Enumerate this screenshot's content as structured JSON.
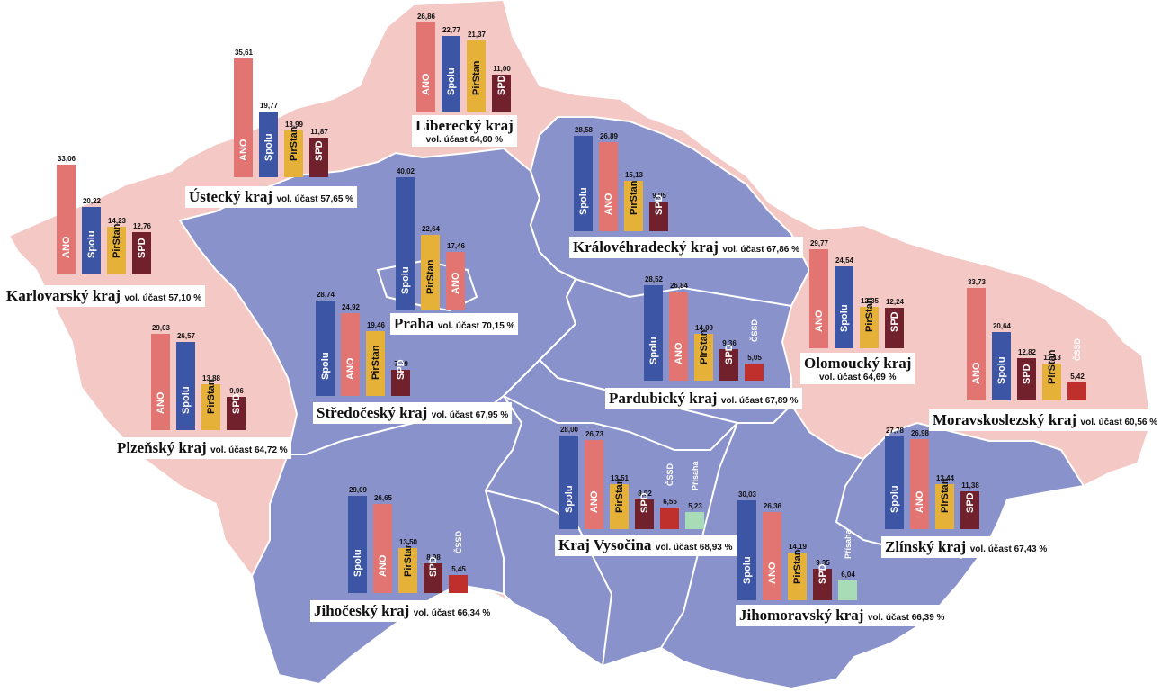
{
  "map": {
    "colors": {
      "pink": "#f4c8c4",
      "blue": "#8a92cb",
      "border": "#ffffff"
    },
    "party_colors": {
      "ANO": "#e27572",
      "Spolu": "#3c55a5",
      "PirStan": "#e5b138",
      "SPD": "#70212c",
      "ČSSD": "#bf302c",
      "Přísaha": "#a8dcb6"
    },
    "regions": [
      {
        "id": "karlovarsky",
        "name": "Karlovarský kraj",
        "turnout_label": "vol. účast 57,10 %",
        "fill": "pink",
        "results": [
          {
            "party": "ANO",
            "label": "ANO",
            "value": "33,06",
            "pct": 33.06
          },
          {
            "party": "Spolu",
            "label": "Spolu",
            "value": "20,22",
            "pct": 20.22
          },
          {
            "party": "PirStan",
            "label": "PirStan",
            "value": "14,23",
            "pct": 14.23
          },
          {
            "party": "SPD",
            "label": "SPD",
            "value": "12,76",
            "pct": 12.76
          }
        ]
      },
      {
        "id": "ustecky",
        "name": "Ústecký kraj",
        "turnout_label": "vol. účast 57,65 %",
        "fill": "pink",
        "results": [
          {
            "party": "ANO",
            "label": "ANO",
            "value": "35,61",
            "pct": 35.61
          },
          {
            "party": "Spolu",
            "label": "Spolu",
            "value": "19,77",
            "pct": 19.77
          },
          {
            "party": "PirStan",
            "label": "PirStan",
            "value": "13,99",
            "pct": 13.99
          },
          {
            "party": "SPD",
            "label": "SPD",
            "value": "11,87",
            "pct": 11.87
          }
        ]
      },
      {
        "id": "liberecky",
        "name": "Liberecký kraj",
        "turnout_label": "vol. účast 64,60 %",
        "fill": "pink",
        "results": [
          {
            "party": "ANO",
            "label": "ANO",
            "value": "26,86",
            "pct": 26.86
          },
          {
            "party": "Spolu",
            "label": "Spolu",
            "value": "22,77",
            "pct": 22.77
          },
          {
            "party": "PirStan",
            "label": "PirStan",
            "value": "21,37",
            "pct": 21.37
          },
          {
            "party": "SPD",
            "label": "SPD",
            "value": "11,00",
            "pct": 11.0
          }
        ]
      },
      {
        "id": "kralovehradecky",
        "name": "Královéhradecký kraj",
        "turnout_label": "vol. účast 67,86 %",
        "fill": "blue",
        "results": [
          {
            "party": "Spolu",
            "label": "Spolu",
            "value": "28,58",
            "pct": 28.58
          },
          {
            "party": "ANO",
            "label": "ANO",
            "value": "26,89",
            "pct": 26.89
          },
          {
            "party": "PirStan",
            "label": "PirStan",
            "value": "15,13",
            "pct": 15.13
          },
          {
            "party": "SPD",
            "label": "SPD",
            "value": "9,05",
            "pct": 9.05
          }
        ]
      },
      {
        "id": "praha",
        "name": "Praha",
        "turnout_label": "vol. účast 70,15 %",
        "fill": "blue",
        "results": [
          {
            "party": "Spolu",
            "label": "Spolu",
            "value": "40,02",
            "pct": 40.02
          },
          {
            "party": "PirStan",
            "label": "PirStan",
            "value": "22,64",
            "pct": 22.64
          },
          {
            "party": "ANO",
            "label": "ANO",
            "value": "17,46",
            "pct": 17.46
          }
        ]
      },
      {
        "id": "stredocesky",
        "name": "Středočeský kraj",
        "turnout_label": "vol. účast 67,95 %",
        "fill": "blue",
        "results": [
          {
            "party": "Spolu",
            "label": "Spolu",
            "value": "28,74",
            "pct": 28.74
          },
          {
            "party": "ANO",
            "label": "ANO",
            "value": "24,92",
            "pct": 24.92
          },
          {
            "party": "PirStan",
            "label": "PirStan",
            "value": "19,46",
            "pct": 19.46
          },
          {
            "party": "SPD",
            "label": "SPD",
            "value": "7,79",
            "pct": 7.79
          }
        ]
      },
      {
        "id": "plzensky",
        "name": "Plzeňský kraj",
        "turnout_label": "vol. účast 64,72 %",
        "fill": "pink",
        "results": [
          {
            "party": "ANO",
            "label": "ANO",
            "value": "29,03",
            "pct": 29.03
          },
          {
            "party": "Spolu",
            "label": "Spolu",
            "value": "26,57",
            "pct": 26.57
          },
          {
            "party": "PirStan",
            "label": "PirStan",
            "value": "13,88",
            "pct": 13.88
          },
          {
            "party": "SPD",
            "label": "SPD",
            "value": "9,96",
            "pct": 9.96
          }
        ]
      },
      {
        "id": "pardubicky",
        "name": "Pardubický kraj",
        "turnout_label": "vol. účast 67,89 %",
        "fill": "blue",
        "results": [
          {
            "party": "Spolu",
            "label": "Spolu",
            "value": "28,52",
            "pct": 28.52
          },
          {
            "party": "ANO",
            "label": "ANO",
            "value": "26,84",
            "pct": 26.84
          },
          {
            "party": "PirStan",
            "label": "PirStan",
            "value": "14,09",
            "pct": 14.09
          },
          {
            "party": "SPD",
            "label": "SPD",
            "value": "9,36",
            "pct": 9.36
          },
          {
            "party": "ČSSD",
            "label": "ČSSD",
            "value": "5,05",
            "pct": 5.05
          }
        ]
      },
      {
        "id": "olomoucky",
        "name": "Olomoucký kraj",
        "turnout_label": "vol. účast 64,69 %",
        "fill": "pink",
        "results": [
          {
            "party": "ANO",
            "label": "ANO",
            "value": "29,77",
            "pct": 29.77
          },
          {
            "party": "Spolu",
            "label": "Spolu",
            "value": "24,54",
            "pct": 24.54
          },
          {
            "party": "PirStan",
            "label": "PirStan",
            "value": "12,35",
            "pct": 12.35
          },
          {
            "party": "SPD",
            "label": "SPD",
            "value": "12,24",
            "pct": 12.24
          }
        ]
      },
      {
        "id": "moravskoslezsky",
        "name": "Moravskoslezský kraj",
        "turnout_label": "vol. účast 60,56 %",
        "fill": "pink",
        "results": [
          {
            "party": "ANO",
            "label": "ANO",
            "value": "33,73",
            "pct": 33.73
          },
          {
            "party": "Spolu",
            "label": "Spolu",
            "value": "20,64",
            "pct": 20.64
          },
          {
            "party": "SPD",
            "label": "SPD",
            "value": "12,82",
            "pct": 12.82
          },
          {
            "party": "PirStan",
            "label": "PirStan",
            "value": "11,13",
            "pct": 11.13
          },
          {
            "party": "ČSSD",
            "label": "ČSSD",
            "value": "5,42",
            "pct": 5.42
          }
        ]
      },
      {
        "id": "vysocina",
        "name": "Kraj Vysočina",
        "turnout_label": "vol. účast 68,93 %",
        "fill": "blue",
        "results": [
          {
            "party": "Spolu",
            "label": "Spolu",
            "value": "28,00",
            "pct": 28.0
          },
          {
            "party": "ANO",
            "label": "ANO",
            "value": "26,73",
            "pct": 26.73
          },
          {
            "party": "PirStan",
            "label": "PirStan",
            "value": "13,51",
            "pct": 13.51
          },
          {
            "party": "SPD",
            "label": "SPD",
            "value": "8,92",
            "pct": 8.92
          },
          {
            "party": "ČSSD",
            "label": "ČSSD",
            "value": "6,55",
            "pct": 6.55
          },
          {
            "party": "Přísaha",
            "label": "Přísaha",
            "value": "5,23",
            "pct": 5.23
          }
        ]
      },
      {
        "id": "zlinsky",
        "name": "Zlínský kraj",
        "turnout_label": "vol. účast 67,43 %",
        "fill": "blue",
        "results": [
          {
            "party": "Spolu",
            "label": "Spolu",
            "value": "27,78",
            "pct": 27.78
          },
          {
            "party": "ANO",
            "label": "ANO",
            "value": "26,98",
            "pct": 26.98
          },
          {
            "party": "PirStan",
            "label": "PirStan",
            "value": "13,44",
            "pct": 13.44
          },
          {
            "party": "SPD",
            "label": "SPD",
            "value": "11,38",
            "pct": 11.38
          }
        ]
      },
      {
        "id": "jihocesky",
        "name": "Jihočeský kraj",
        "turnout_label": "vol. účast 66,34 %",
        "fill": "blue",
        "results": [
          {
            "party": "Spolu",
            "label": "Spolu",
            "value": "29,09",
            "pct": 29.09
          },
          {
            "party": "ANO",
            "label": "ANO",
            "value": "26,65",
            "pct": 26.65
          },
          {
            "party": "PirStan",
            "label": "PirStan",
            "value": "13,50",
            "pct": 13.5
          },
          {
            "party": "SPD",
            "label": "SPD",
            "value": "8,98",
            "pct": 8.98
          },
          {
            "party": "ČSSD",
            "label": "ČSSD",
            "value": "5,45",
            "pct": 5.45
          }
        ]
      },
      {
        "id": "jihomoravsky",
        "name": "Jihomoravský kraj",
        "turnout_label": "vol. účast 66,39 %",
        "fill": "blue",
        "results": [
          {
            "party": "Spolu",
            "label": "Spolu",
            "value": "30,03",
            "pct": 30.03
          },
          {
            "party": "ANO",
            "label": "ANO",
            "value": "26,36",
            "pct": 26.36
          },
          {
            "party": "PirStan",
            "label": "PirStan",
            "value": "14,19",
            "pct": 14.19
          },
          {
            "party": "SPD",
            "label": "SPD",
            "value": "9,35",
            "pct": 9.35
          },
          {
            "party": "Přísaha",
            "label": "Přísaha",
            "value": "6,04",
            "pct": 6.04
          }
        ]
      }
    ]
  }
}
